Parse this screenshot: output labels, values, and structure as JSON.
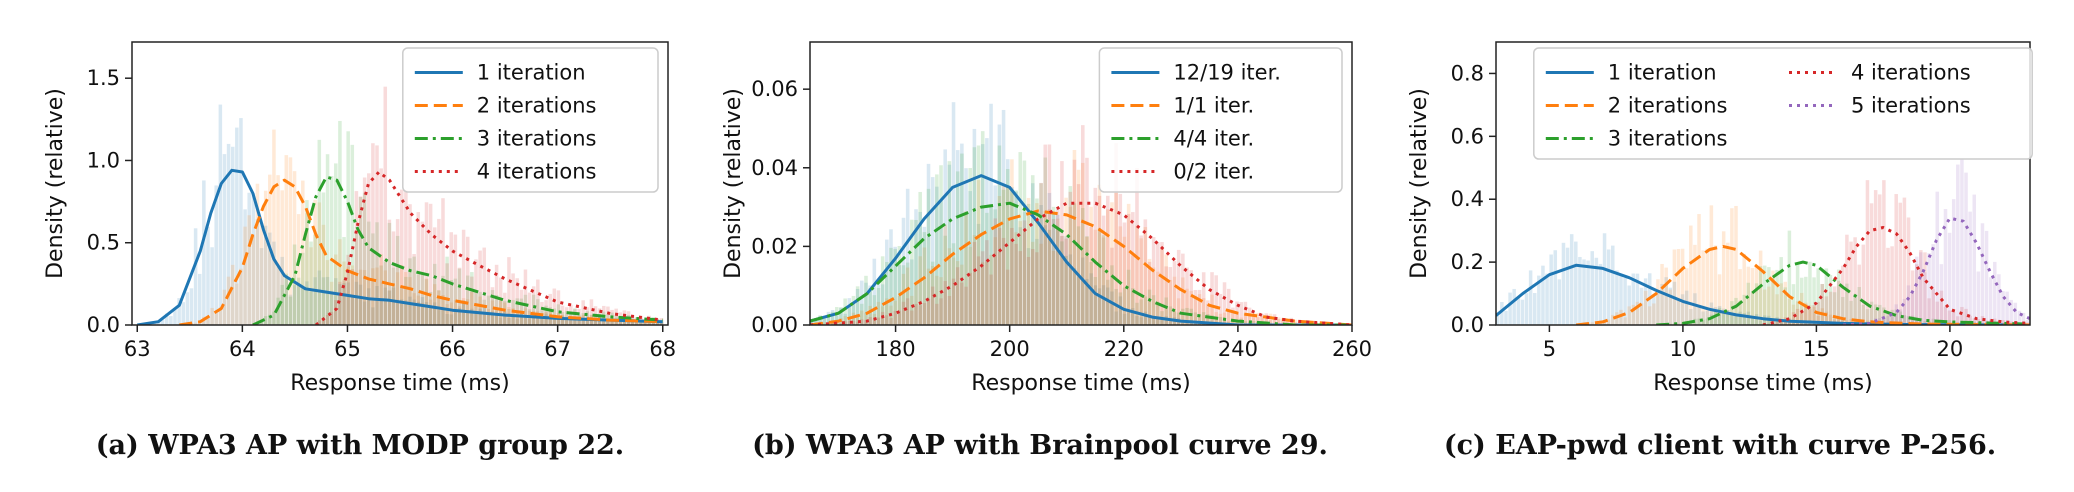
{
  "captions": [
    "(a) WPA3 AP with MODP group 22.",
    "(b) WPA3 AP with Brainpool curve 29.",
    "(c) EAP-pwd client with curve P-256."
  ],
  "colors": {
    "blue": "#1f77b4",
    "orange": "#ff7f0e",
    "green": "#2ca02c",
    "red": "#d62728",
    "purple": "#9467bd"
  },
  "chart_data": [
    {
      "type": "line",
      "xlabel": "Response time (ms)",
      "ylabel": "Density (relative)",
      "xlim": [
        62.95,
        68.05
      ],
      "ylim": [
        0,
        1.72
      ],
      "xticks": [
        63,
        64,
        65,
        66,
        67,
        68
      ],
      "yticks": [
        0.0,
        0.5,
        1.0,
        1.5
      ],
      "ytick_format": 1,
      "legend": "top-right",
      "histogram_backdrop": true,
      "series": [
        {
          "name": "1 iteration",
          "color": "blue",
          "dash": "solid",
          "x": [
            63.0,
            63.2,
            63.4,
            63.6,
            63.7,
            63.8,
            63.9,
            64.0,
            64.1,
            64.2,
            64.3,
            64.4,
            64.6,
            64.8,
            65.0,
            65.2,
            65.4,
            65.6,
            65.8,
            66.0,
            66.5,
            67.0,
            67.5,
            68.0
          ],
          "y": [
            0.0,
            0.02,
            0.12,
            0.45,
            0.68,
            0.86,
            0.94,
            0.93,
            0.8,
            0.58,
            0.4,
            0.3,
            0.22,
            0.2,
            0.18,
            0.16,
            0.15,
            0.13,
            0.11,
            0.09,
            0.06,
            0.04,
            0.03,
            0.02
          ]
        },
        {
          "name": "2 iterations",
          "color": "orange",
          "dash": "dashed",
          "x": [
            63.4,
            63.6,
            63.8,
            64.0,
            64.1,
            64.2,
            64.3,
            64.4,
            64.5,
            64.6,
            64.7,
            64.8,
            65.0,
            65.2,
            65.4,
            65.6,
            65.8,
            66.0,
            66.5,
            67.0,
            67.5,
            68.0
          ],
          "y": [
            0.0,
            0.02,
            0.1,
            0.35,
            0.55,
            0.72,
            0.84,
            0.88,
            0.84,
            0.72,
            0.55,
            0.42,
            0.33,
            0.28,
            0.25,
            0.22,
            0.18,
            0.15,
            0.09,
            0.05,
            0.03,
            0.02
          ]
        },
        {
          "name": "3 iterations",
          "color": "green",
          "dash": "dashdot",
          "x": [
            64.1,
            64.3,
            64.5,
            64.6,
            64.7,
            64.8,
            64.9,
            65.0,
            65.1,
            65.2,
            65.4,
            65.6,
            65.8,
            66.0,
            66.5,
            67.0,
            67.5,
            68.0
          ],
          "y": [
            0.0,
            0.06,
            0.3,
            0.55,
            0.78,
            0.9,
            0.88,
            0.75,
            0.58,
            0.47,
            0.38,
            0.33,
            0.3,
            0.25,
            0.15,
            0.08,
            0.05,
            0.03
          ]
        },
        {
          "name": "4 iterations",
          "color": "red",
          "dash": "dotted",
          "x": [
            64.7,
            64.9,
            65.0,
            65.1,
            65.2,
            65.3,
            65.4,
            65.5,
            65.6,
            65.8,
            66.0,
            66.2,
            66.5,
            67.0,
            67.5,
            68.0
          ],
          "y": [
            0.0,
            0.1,
            0.32,
            0.62,
            0.86,
            0.93,
            0.88,
            0.78,
            0.68,
            0.55,
            0.45,
            0.38,
            0.28,
            0.14,
            0.07,
            0.03
          ]
        }
      ]
    },
    {
      "type": "line",
      "xlabel": "Response time (ms)",
      "ylabel": "Density (relative)",
      "xlim": [
        165,
        260
      ],
      "ylim": [
        0,
        0.072
      ],
      "xticks": [
        180,
        200,
        220,
        240,
        260
      ],
      "yticks": [
        0.0,
        0.02,
        0.04,
        0.06
      ],
      "ytick_format": 2,
      "legend": "top-right",
      "histogram_backdrop": true,
      "series": [
        {
          "name": "12/19 iter.",
          "color": "blue",
          "dash": "solid",
          "x": [
            165,
            170,
            175,
            180,
            185,
            190,
            195,
            200,
            205,
            210,
            215,
            220,
            225,
            230,
            240,
            250,
            260
          ],
          "y": [
            0.001,
            0.003,
            0.008,
            0.017,
            0.027,
            0.035,
            0.038,
            0.035,
            0.026,
            0.016,
            0.008,
            0.004,
            0.002,
            0.001,
            0.0,
            0.0,
            0.0
          ]
        },
        {
          "name": "1/1 iter.",
          "color": "orange",
          "dash": "dashed",
          "x": [
            165,
            170,
            175,
            180,
            185,
            190,
            195,
            200,
            205,
            210,
            215,
            220,
            225,
            230,
            235,
            240,
            250,
            260
          ],
          "y": [
            0.0,
            0.001,
            0.003,
            0.007,
            0.012,
            0.018,
            0.023,
            0.027,
            0.029,
            0.028,
            0.025,
            0.02,
            0.014,
            0.009,
            0.005,
            0.003,
            0.001,
            0.0
          ]
        },
        {
          "name": "4/4 iter.",
          "color": "green",
          "dash": "dashdot",
          "x": [
            165,
            170,
            175,
            180,
            185,
            190,
            195,
            200,
            205,
            210,
            215,
            220,
            225,
            230,
            240,
            250,
            260
          ],
          "y": [
            0.001,
            0.003,
            0.008,
            0.015,
            0.022,
            0.027,
            0.03,
            0.031,
            0.028,
            0.023,
            0.016,
            0.01,
            0.006,
            0.003,
            0.001,
            0.0,
            0.0
          ]
        },
        {
          "name": "0/2 iter.",
          "color": "red",
          "dash": "dotted",
          "x": [
            165,
            175,
            180,
            185,
            190,
            195,
            200,
            205,
            210,
            215,
            220,
            225,
            230,
            235,
            240,
            245,
            250,
            260
          ],
          "y": [
            0.0,
            0.001,
            0.003,
            0.006,
            0.01,
            0.015,
            0.021,
            0.027,
            0.031,
            0.031,
            0.028,
            0.022,
            0.015,
            0.009,
            0.005,
            0.002,
            0.001,
            0.0
          ]
        }
      ]
    },
    {
      "type": "line",
      "xlabel": "Response time (ms)",
      "ylabel": "Density (relative)",
      "xlim": [
        3,
        23
      ],
      "ylim": [
        0,
        0.9
      ],
      "xticks": [
        5,
        10,
        15,
        20
      ],
      "yticks": [
        0.0,
        0.2,
        0.4,
        0.6,
        0.8
      ],
      "ytick_format": 1,
      "legend": "top",
      "legend_columns": 2,
      "histogram_backdrop": true,
      "series": [
        {
          "name": "1 iteration",
          "color": "blue",
          "dash": "solid",
          "x": [
            3,
            4,
            5,
            6,
            7,
            8,
            9,
            10,
            11,
            12,
            13,
            14,
            16,
            18,
            20,
            23
          ],
          "y": [
            0.03,
            0.1,
            0.16,
            0.19,
            0.18,
            0.15,
            0.11,
            0.075,
            0.05,
            0.032,
            0.02,
            0.012,
            0.005,
            0.002,
            0.001,
            0.0
          ]
        },
        {
          "name": "2 iterations",
          "color": "orange",
          "dash": "dashed",
          "x": [
            6,
            7,
            8,
            9,
            10,
            11,
            11.5,
            12,
            13,
            14,
            15,
            16,
            17,
            19,
            23
          ],
          "y": [
            0.0,
            0.01,
            0.04,
            0.1,
            0.18,
            0.24,
            0.25,
            0.24,
            0.17,
            0.09,
            0.04,
            0.02,
            0.01,
            0.003,
            0.0
          ]
        },
        {
          "name": "3 iterations",
          "color": "green",
          "dash": "dashdot",
          "x": [
            9,
            10,
            11,
            12,
            13,
            14,
            14.5,
            15,
            16,
            17,
            18,
            19,
            20,
            22,
            23
          ],
          "y": [
            0.0,
            0.005,
            0.02,
            0.06,
            0.13,
            0.19,
            0.2,
            0.19,
            0.12,
            0.06,
            0.03,
            0.015,
            0.01,
            0.005,
            0.003
          ]
        },
        {
          "name": "4 iterations",
          "color": "red",
          "dash": "dotted",
          "x": [
            13,
            14,
            15,
            16,
            16.5,
            17,
            17.5,
            18,
            18.5,
            19,
            20,
            21,
            22,
            23
          ],
          "y": [
            0.0,
            0.02,
            0.07,
            0.18,
            0.25,
            0.3,
            0.31,
            0.29,
            0.23,
            0.15,
            0.05,
            0.02,
            0.01,
            0.005
          ]
        },
        {
          "name": "5 iterations",
          "color": "purple",
          "dash": "dotted",
          "x": [
            16,
            17,
            18,
            18.5,
            19,
            19.5,
            20,
            20.5,
            21,
            21.5,
            22,
            22.5,
            23
          ],
          "y": [
            0.0,
            0.005,
            0.04,
            0.09,
            0.17,
            0.27,
            0.34,
            0.33,
            0.26,
            0.17,
            0.09,
            0.04,
            0.02
          ]
        }
      ]
    }
  ]
}
